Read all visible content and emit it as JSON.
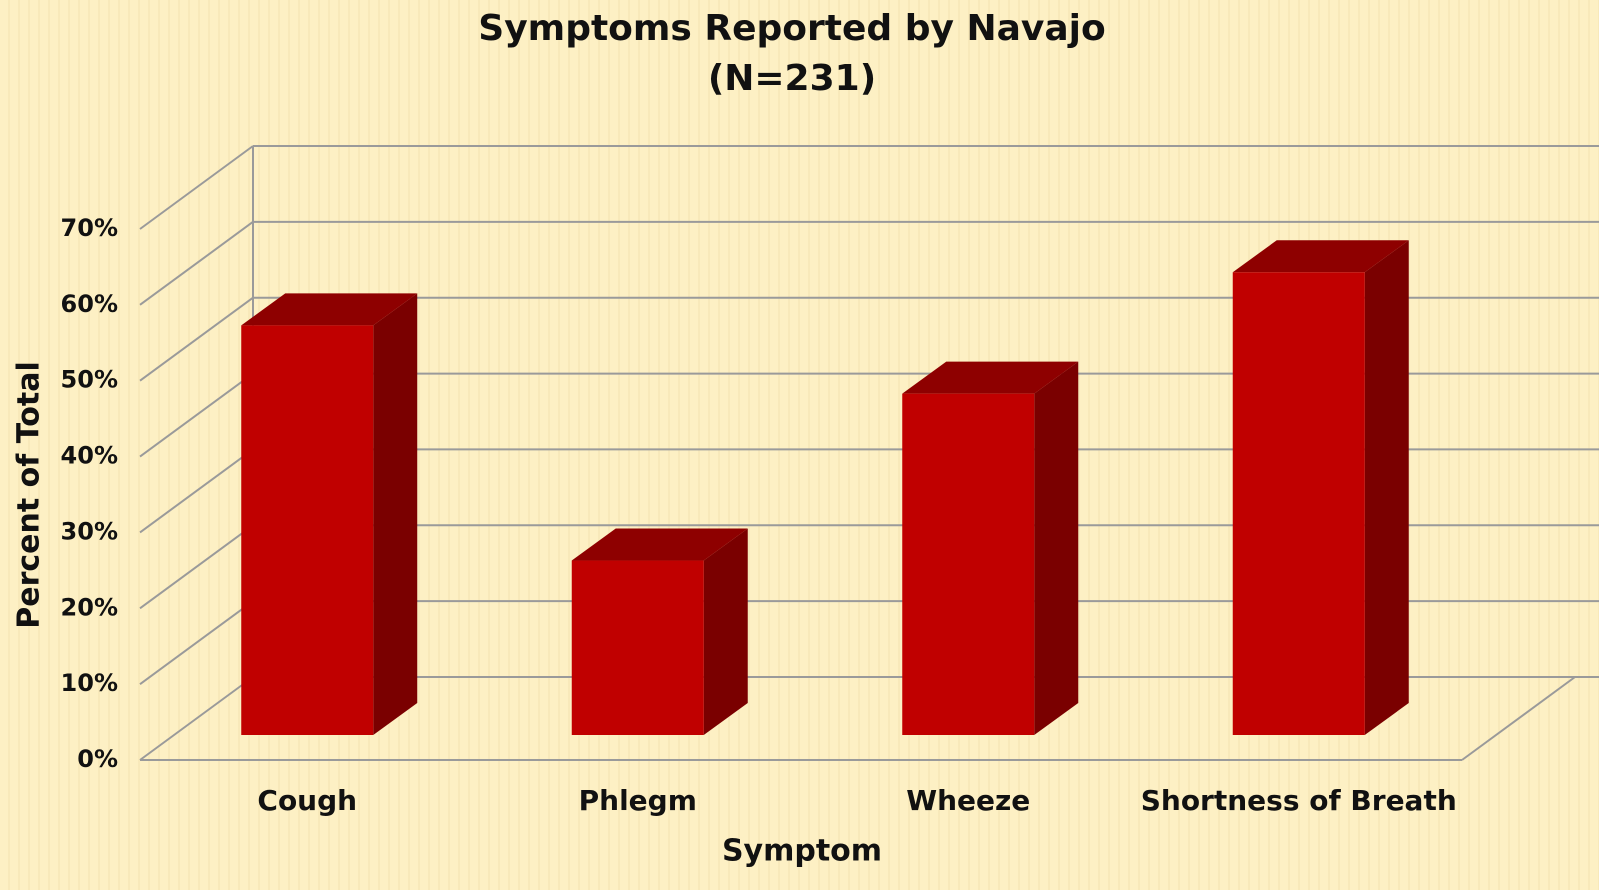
{
  "chart_data": {
    "type": "bar3d",
    "title": "Symptoms Reported by Navajo",
    "subtitle": "(N=231)",
    "x_label": "Symptom",
    "y_label": "Percent of Total",
    "categories": [
      "Cough",
      "Phlegm",
      "Wheeze",
      "Shortness of Breath"
    ],
    "values": [
      54,
      23,
      45,
      61
    ],
    "color": "#c00000",
    "ylim": [
      0,
      70
    ],
    "yticks": [
      {
        "value": 0,
        "label": "0%"
      },
      {
        "value": 10,
        "label": "10%"
      },
      {
        "value": 20,
        "label": "20%"
      },
      {
        "value": 30,
        "label": "30%"
      },
      {
        "value": 40,
        "label": "40%"
      },
      {
        "value": 50,
        "label": "50%"
      },
      {
        "value": 60,
        "label": "60%"
      },
      {
        "value": 70,
        "label": "70%"
      }
    ],
    "grid": true
  }
}
